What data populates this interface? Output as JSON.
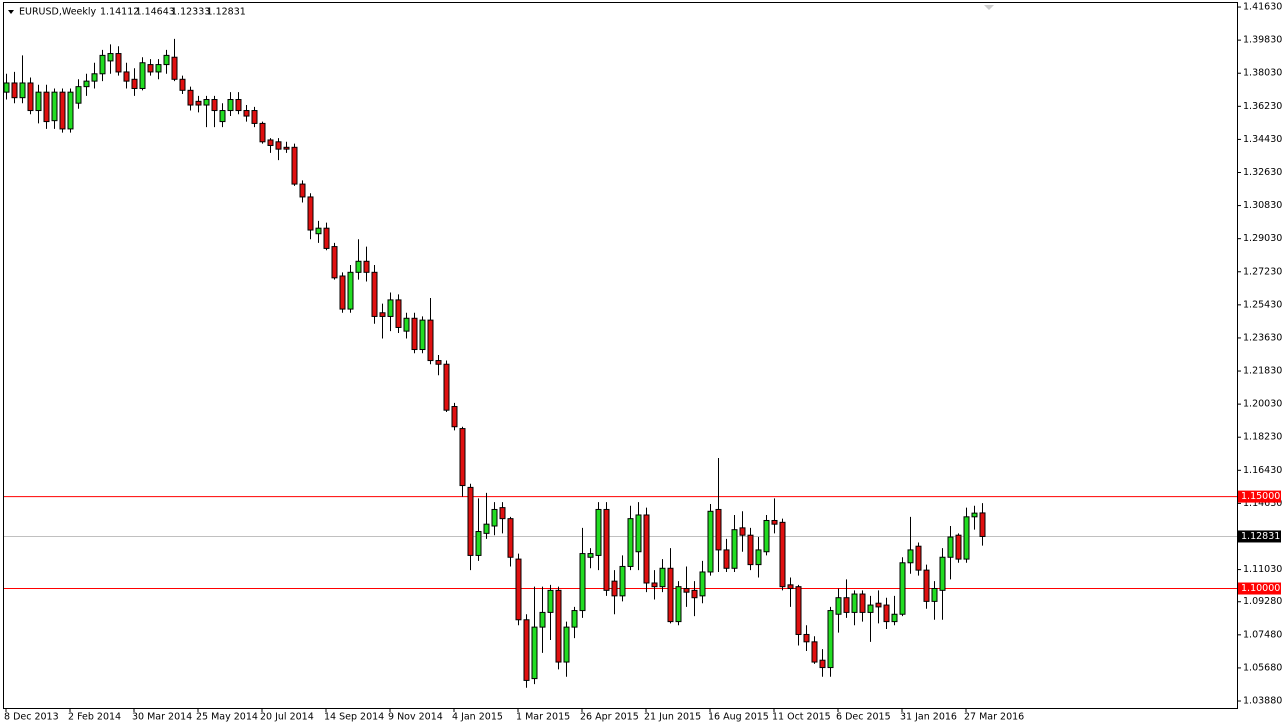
{
  "chart_data": {
    "type": "candlestick",
    "symbol": "EURUSD,Weekly",
    "ohlc": [
      1.14112,
      1.14643,
      1.12333,
      1.12831
    ],
    "categories": [
      "8 Dec 2013",
      null,
      null,
      null,
      null,
      null,
      null,
      null,
      "2 Feb 2014",
      null,
      null,
      null,
      null,
      null,
      null,
      null,
      "30 Mar 2014",
      null,
      null,
      null,
      null,
      null,
      null,
      null,
      "25 May 2014",
      null,
      null,
      null,
      null,
      null,
      null,
      null,
      "20 Jul 2014",
      null,
      null,
      null,
      null,
      null,
      null,
      null,
      "14 Sep 2014",
      null,
      null,
      null,
      null,
      null,
      null,
      null,
      "9 Nov 2014",
      null,
      null,
      null,
      null,
      null,
      null,
      null,
      "4 Jan 2015",
      null,
      null,
      null,
      null,
      null,
      null,
      null,
      "1 Mar 2015",
      null,
      null,
      null,
      null,
      null,
      null,
      null,
      "26 Apr 2015",
      null,
      null,
      null,
      null,
      null,
      null,
      null,
      "21 Jun 2015",
      null,
      null,
      null,
      null,
      null,
      null,
      null,
      "16 Aug 2015",
      null,
      null,
      null,
      null,
      null,
      null,
      null,
      "11 Oct 2015",
      null,
      null,
      null,
      null,
      null,
      null,
      null,
      "6 Dec 2015",
      null,
      null,
      null,
      null,
      null,
      null,
      null,
      "31 Jan 2016",
      null,
      null,
      null,
      null,
      null,
      null,
      null,
      "27 Mar 2016",
      null,
      null
    ],
    "open": [
      1.37,
      1.375,
      1.367,
      1.375,
      1.36,
      1.37,
      1.3545,
      1.37,
      1.35,
      1.364,
      1.373,
      1.376,
      1.38,
      1.387,
      1.391,
      1.381,
      1.377,
      1.372,
      1.385,
      1.381,
      1.385,
      1.389,
      1.377,
      1.371,
      1.365,
      1.363,
      1.366,
      1.354,
      1.36,
      1.366,
      1.36,
      1.36,
      1.353,
      1.344,
      1.343,
      1.34,
      1.34,
      1.32,
      1.313,
      1.293,
      1.296,
      1.286,
      1.27,
      1.252,
      1.272,
      1.278,
      1.272,
      1.25,
      1.248,
      1.257,
      1.24,
      1.247,
      1.23,
      1.246,
      1.224,
      1.222,
      1.199,
      1.187,
      1.155,
      1.118,
      1.13,
      1.134,
      1.144,
      1.138,
      1.116,
      1.083,
      1.051,
      1.079,
      1.087,
      1.099,
      1.06,
      1.079,
      1.088,
      1.117,
      1.118,
      1.143,
      1.104,
      1.096,
      1.112,
      1.12,
      1.14,
      1.103,
      1.101,
      1.111,
      1.082,
      1.1,
      1.099,
      1.096,
      1.109,
      1.143,
      1.121,
      1.111,
      1.133,
      1.129,
      1.113,
      1.12,
      1.137,
      1.136,
      1.102,
      1.101,
      1.075,
      1.071,
      1.061,
      1.057,
      1.086,
      1.095,
      1.087,
      1.097,
      1.087,
      1.092,
      1.091,
      1.082,
      1.086,
      1.114,
      1.123,
      1.11,
      1.093,
      1.099,
      1.117,
      1.129,
      1.116,
      1.139,
      1.14112
    ],
    "high": [
      1.38,
      1.381,
      1.39,
      1.378,
      1.374,
      1.374,
      1.372,
      1.372,
      1.372,
      1.377,
      1.38,
      1.386,
      1.393,
      1.396,
      1.395,
      1.386,
      1.383,
      1.389,
      1.388,
      1.388,
      1.393,
      1.399,
      1.379,
      1.373,
      1.368,
      1.368,
      1.368,
      1.364,
      1.37,
      1.37,
      1.363,
      1.362,
      1.354,
      1.345,
      1.345,
      1.343,
      1.342,
      1.322,
      1.315,
      1.3,
      1.299,
      1.288,
      1.272,
      1.276,
      1.29,
      1.286,
      1.276,
      1.255,
      1.261,
      1.26,
      1.25,
      1.25,
      1.248,
      1.258,
      1.227,
      1.224,
      1.201,
      1.188,
      1.157,
      1.149,
      1.152,
      1.147,
      1.147,
      1.139,
      1.119,
      1.086,
      1.101,
      1.101,
      1.102,
      1.101,
      1.082,
      1.09,
      1.133,
      1.122,
      1.147,
      1.147,
      1.11,
      1.118,
      1.145,
      1.147,
      1.144,
      1.11,
      1.116,
      1.122,
      1.104,
      1.112,
      1.104,
      1.115,
      1.146,
      1.171,
      1.127,
      1.14,
      1.142,
      1.133,
      1.128,
      1.14,
      1.149,
      1.138,
      1.106,
      1.102,
      1.08,
      1.074,
      1.067,
      1.09,
      1.1,
      1.105,
      1.099,
      1.099,
      1.096,
      1.099,
      1.095,
      1.096,
      1.117,
      1.139,
      1.125,
      1.113,
      1.104,
      1.122,
      1.134,
      1.13,
      1.144,
      1.145,
      1.14643
    ],
    "low": [
      1.366,
      1.364,
      1.364,
      1.358,
      1.353,
      1.35,
      1.35,
      1.348,
      1.348,
      1.361,
      1.368,
      1.372,
      1.376,
      1.38,
      1.379,
      1.372,
      1.368,
      1.371,
      1.379,
      1.377,
      1.38,
      1.376,
      1.369,
      1.36,
      1.359,
      1.351,
      1.351,
      1.351,
      1.357,
      1.358,
      1.354,
      1.351,
      1.342,
      1.337,
      1.333,
      1.337,
      1.319,
      1.31,
      1.29,
      1.288,
      1.284,
      1.268,
      1.25,
      1.25,
      1.268,
      1.267,
      1.244,
      1.236,
      1.24,
      1.239,
      1.236,
      1.228,
      1.228,
      1.222,
      1.216,
      1.196,
      1.186,
      1.15,
      1.11,
      1.115,
      1.127,
      1.129,
      1.13,
      1.112,
      1.08,
      1.046,
      1.048,
      1.065,
      1.072,
      1.056,
      1.052,
      1.073,
      1.084,
      1.111,
      1.11,
      1.096,
      1.086,
      1.093,
      1.11,
      1.11,
      1.098,
      1.094,
      1.098,
      1.081,
      1.08,
      1.09,
      1.085,
      1.092,
      1.107,
      1.109,
      1.109,
      1.109,
      1.12,
      1.11,
      1.106,
      1.118,
      1.13,
      1.099,
      1.09,
      1.069,
      1.066,
      1.059,
      1.052,
      1.052,
      1.076,
      1.084,
      1.08,
      1.082,
      1.071,
      1.081,
      1.078,
      1.08,
      1.085,
      1.108,
      1.107,
      1.089,
      1.083,
      1.083,
      1.105,
      1.114,
      1.114,
      1.132,
      1.12333
    ],
    "close": [
      1.375,
      1.367,
      1.375,
      1.36,
      1.37,
      1.354,
      1.37,
      1.35,
      1.37,
      1.373,
      1.376,
      1.38,
      1.39,
      1.391,
      1.381,
      1.376,
      1.372,
      1.386,
      1.381,
      1.385,
      1.39,
      1.377,
      1.371,
      1.363,
      1.363,
      1.366,
      1.36,
      1.36,
      1.366,
      1.36,
      1.357,
      1.353,
      1.343,
      1.341,
      1.339,
      1.339,
      1.32,
      1.313,
      1.295,
      1.296,
      1.285,
      1.269,
      1.252,
      1.272,
      1.278,
      1.272,
      1.248,
      1.248,
      1.257,
      1.242,
      1.247,
      1.23,
      1.246,
      1.224,
      1.222,
      1.197,
      1.188,
      1.156,
      1.118,
      1.131,
      1.135,
      1.143,
      1.138,
      1.117,
      1.083,
      1.05,
      1.079,
      1.087,
      1.099,
      1.06,
      1.079,
      1.088,
      1.119,
      1.119,
      1.143,
      1.099,
      1.096,
      1.112,
      1.138,
      1.14,
      1.103,
      1.101,
      1.111,
      1.082,
      1.101,
      1.098,
      1.095,
      1.109,
      1.142,
      1.121,
      1.111,
      1.132,
      1.129,
      1.113,
      1.121,
      1.137,
      1.135,
      1.101,
      1.1,
      1.075,
      1.071,
      1.06,
      1.057,
      1.088,
      1.095,
      1.087,
      1.097,
      1.087,
      1.091,
      1.09,
      1.082,
      1.086,
      1.114,
      1.121,
      1.11,
      1.093,
      1.1,
      1.117,
      1.128,
      1.116,
      1.139,
      1.141,
      1.12831
    ],
    "up_color": "#22dd22",
    "down_color": "#e01010",
    "ylim": [
      1.035,
      1.4185
    ],
    "yticks": [
      {
        "value": 1.4163,
        "label": "1.41630"
      },
      {
        "value": 1.3983,
        "label": "1.39830"
      },
      {
        "value": 1.3803,
        "label": "1.38030"
      },
      {
        "value": 1.3623,
        "label": "1.36230"
      },
      {
        "value": 1.3443,
        "label": "1.34430"
      },
      {
        "value": 1.3263,
        "label": "1.32630"
      },
      {
        "value": 1.3083,
        "label": "1.30830"
      },
      {
        "value": 1.2903,
        "label": "1.29030"
      },
      {
        "value": 1.2723,
        "label": "1.27230"
      },
      {
        "value": 1.2543,
        "label": "1.25430"
      },
      {
        "value": 1.2363,
        "label": "1.23630"
      },
      {
        "value": 1.2183,
        "label": "1.21830"
      },
      {
        "value": 1.2003,
        "label": "1.20030"
      },
      {
        "value": 1.1823,
        "label": "1.18230"
      },
      {
        "value": 1.1643,
        "label": "1.16430"
      },
      {
        "value": 1.1463,
        "label": "1.14630"
      },
      {
        "value": 1.1103,
        "label": "1.11030"
      },
      {
        "value": 1.0928,
        "label": "1.09280"
      },
      {
        "value": 1.0748,
        "label": "1.07480"
      },
      {
        "value": 1.0568,
        "label": "1.05680"
      },
      {
        "value": 1.0388,
        "label": "1.03880"
      }
    ],
    "hlines": [
      {
        "value": 1.15,
        "label": "1.15000",
        "color": "#ff0000"
      },
      {
        "value": 1.1,
        "label": "1.10000",
        "color": "#ff0000"
      }
    ],
    "last_price": 1.12831
  }
}
